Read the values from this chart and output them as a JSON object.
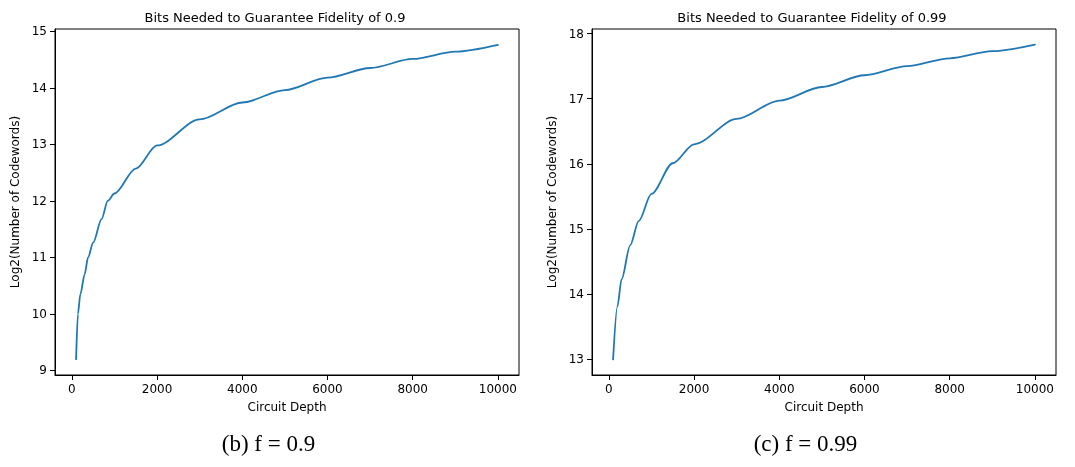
{
  "chart_data": [
    {
      "type": "line",
      "title": "Bits Needed to Guarantee Fidelity of 0.9",
      "xlabel": "Circuit Depth",
      "ylabel": "Log2(Number of Codewords)",
      "annotations": [
        "(b) f = 0.9"
      ],
      "grid": false,
      "marker": "none",
      "line_style": "solid",
      "xlim": [
        -395,
        10495
      ],
      "xticks": [
        0,
        2000,
        4000,
        6000,
        8000,
        10000
      ],
      "ylim": [
        8.92,
        15.04
      ],
      "yticks": [
        9,
        10,
        11,
        12,
        13,
        14,
        15
      ],
      "series": [
        {
          "color": "#1f77b4",
          "x": [
            100,
            143,
            200,
            300,
            381,
            500,
            700,
            842,
            1000,
            1500,
            2000,
            3000,
            4000,
            5000,
            6000,
            7000,
            8000,
            9000,
            10000
          ],
          "values": [
            9.2,
            10,
            10.35,
            10.7,
            11,
            11.26,
            11.68,
            12,
            12.13,
            12.57,
            12.98,
            13.44,
            13.74,
            13.96,
            14.18,
            14.35,
            14.51,
            14.64,
            14.76
          ]
        }
      ]
    },
    {
      "type": "line",
      "title": "Bits Needed to Guarantee Fidelity of 0.99",
      "xlabel": "Circuit Depth",
      "ylabel": "Log2(Number of Codewords)",
      "annotations": [
        "(c) f = 0.99"
      ],
      "grid": false,
      "marker": "none",
      "line_style": "solid",
      "xlim": [
        -395,
        10495
      ],
      "xticks": [
        0,
        2000,
        4000,
        6000,
        8000,
        10000
      ],
      "ylim": [
        12.76,
        18.07
      ],
      "yticks": [
        13,
        14,
        15,
        16,
        17,
        18
      ],
      "series": [
        {
          "color": "#1f77b4",
          "x": [
            100,
            200,
            300,
            500,
            700,
            1000,
            1500,
            2000,
            3000,
            4000,
            5000,
            6000,
            7000,
            8000,
            9000,
            10000
          ],
          "values": [
            13,
            13.81,
            14.23,
            14.75,
            15.12,
            15.54,
            16.01,
            16.3,
            16.69,
            16.97,
            17.18,
            17.36,
            17.5,
            17.62,
            17.73,
            17.83
          ]
        }
      ]
    }
  ]
}
